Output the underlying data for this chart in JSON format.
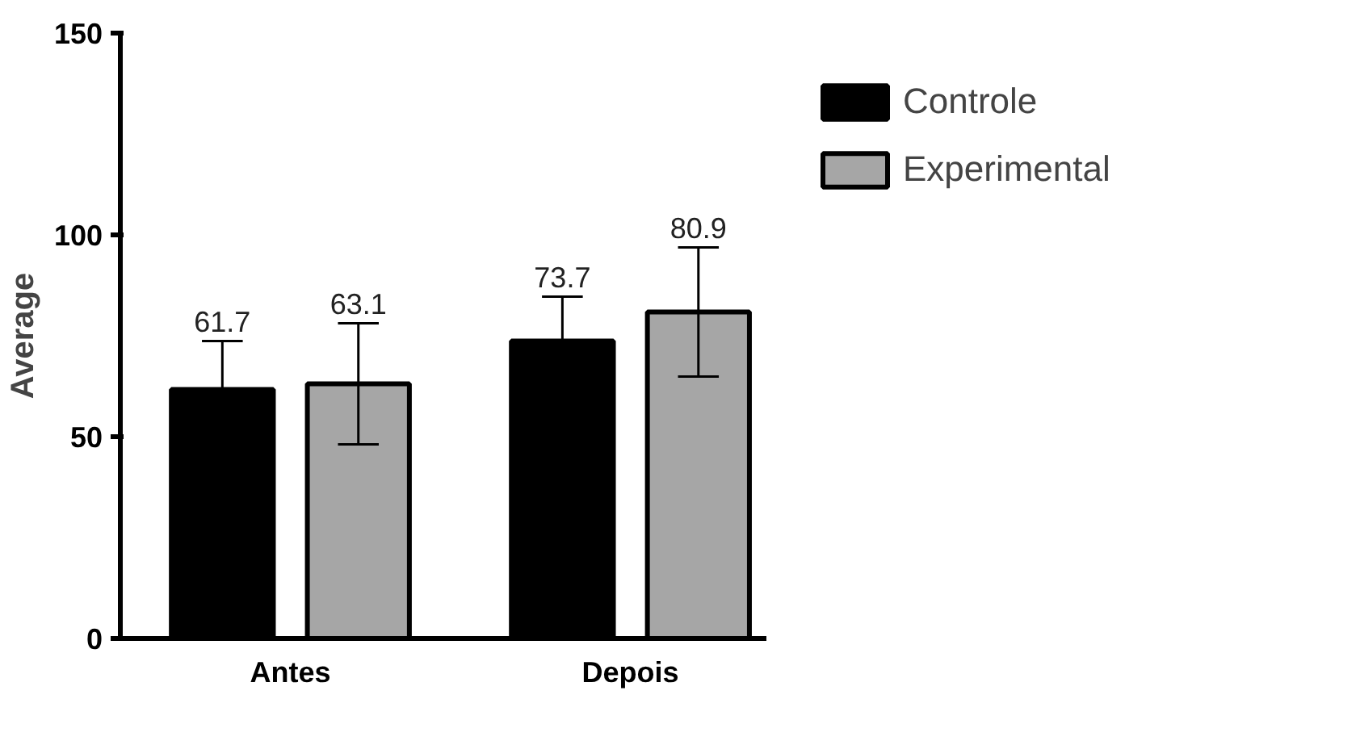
{
  "chart_data": {
    "type": "bar",
    "ylabel": "Average",
    "categories": [
      "Antes",
      "Depois"
    ],
    "series": [
      {
        "name": "Controle",
        "color": "#000000",
        "values": [
          61.7,
          73.7
        ],
        "errors": [
          12,
          11
        ]
      },
      {
        "name": "Experimental",
        "color": "#a6a6a6",
        "values": [
          63.1,
          80.9
        ],
        "errors": [
          15,
          16
        ]
      }
    ],
    "ylim": [
      0,
      150
    ],
    "yticks": [
      0,
      50,
      100,
      150
    ],
    "data_labels": true,
    "legend": "top right",
    "grid": false
  }
}
